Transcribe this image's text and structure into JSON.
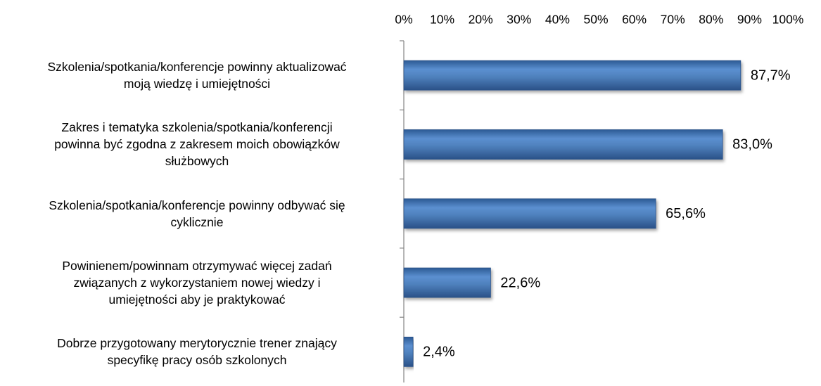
{
  "chart_data": {
    "type": "hbar",
    "categories": [
      "Szkolenia/spotkania/konferencje powinny aktualizować\nmoją wiedzę i umiejętności",
      "Zakres i tematyka szkolenia/spotkania/konferencji\npowinna być zgodna z zakresem moich obowiązków\nsłużbowych",
      "Szkolenia/spotkania/konferencje powinny odbywać się\ncyklicznie",
      "Powinienem/powinnam otrzymywać więcej zadań\nzwiązanych z wykorzystaniem nowej wiedzy i\numiejętności aby je praktykować",
      "Dobrze przygotowany merytorycznie trener znający\nspecyfikę pracy osób szkolonych"
    ],
    "values": [
      87.7,
      83.0,
      65.6,
      22.6,
      2.4
    ],
    "value_labels": [
      "87,7%",
      "83,0%",
      "65,6%",
      "22,6%",
      "2,4%"
    ],
    "color": "#4f81bd",
    "xlim": [
      0,
      100
    ],
    "xticks": [
      {
        "value": 0,
        "label": "0%"
      },
      {
        "value": 10,
        "label": "10%"
      },
      {
        "value": 20,
        "label": "20%"
      },
      {
        "value": 30,
        "label": "30%"
      },
      {
        "value": 40,
        "label": "40%"
      },
      {
        "value": 50,
        "label": "50%"
      },
      {
        "value": 60,
        "label": "60%"
      },
      {
        "value": 70,
        "label": "70%"
      },
      {
        "value": 80,
        "label": "80%"
      },
      {
        "value": 90,
        "label": "90%"
      },
      {
        "value": 100,
        "label": "100%"
      }
    ],
    "grid": false
  }
}
